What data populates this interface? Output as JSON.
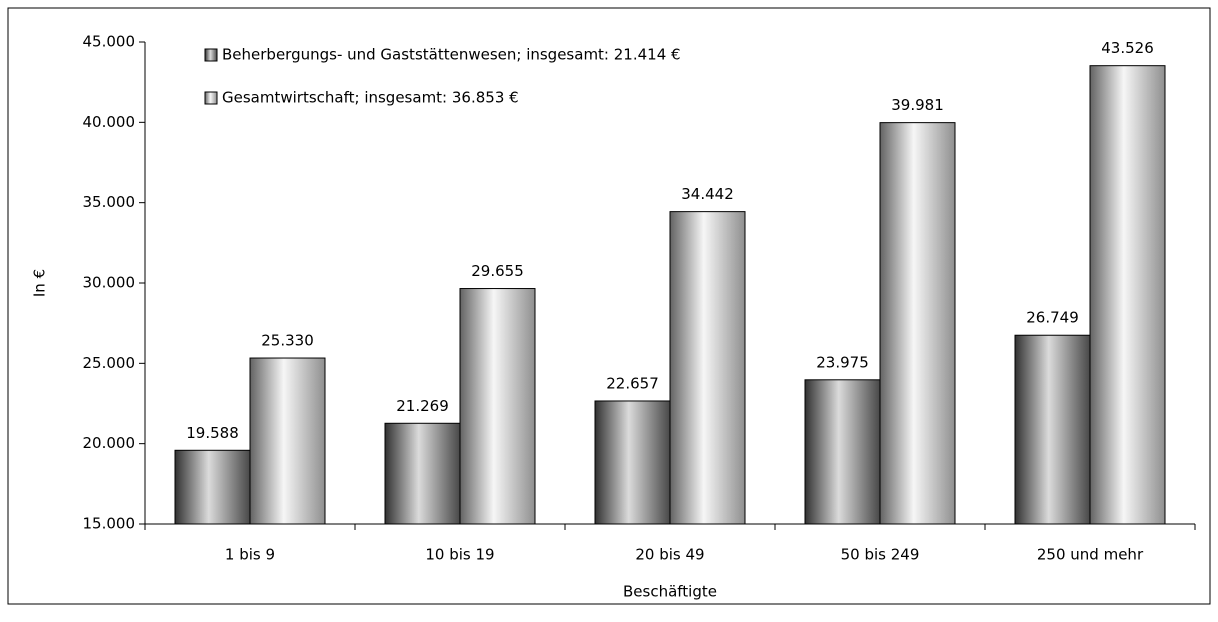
{
  "chart_data": {
    "type": "bar",
    "categories": [
      "1 bis 9",
      "10 bis 19",
      "20 bis 49",
      "50 bis 249",
      "250 und mehr"
    ],
    "series": [
      {
        "name": "Beherbergungs- und Gaststättenwesen; insgesamt: 21.414 €",
        "color": "#6e6e6e",
        "values": [
          19588,
          21269,
          22657,
          23975,
          26749
        ],
        "value_labels": [
          "19.588",
          "21.269",
          "22.657",
          "23.975",
          "26.749"
        ]
      },
      {
        "name": "Gesamtwirtschaft; insgesamt: 36.853 €",
        "color": "#dcdcdc",
        "values": [
          25330,
          29655,
          34442,
          39981,
          43526
        ],
        "value_labels": [
          "25.330",
          "29.655",
          "34.442",
          "39.981",
          "43.526"
        ]
      }
    ],
    "ylim": [
      15000,
      45000
    ],
    "yticks": [
      {
        "value": 15000,
        "label": "15.000"
      },
      {
        "value": 20000,
        "label": "20.000"
      },
      {
        "value": 25000,
        "label": "25.000"
      },
      {
        "value": 30000,
        "label": "30.000"
      },
      {
        "value": 35000,
        "label": "35.000"
      },
      {
        "value": 40000,
        "label": "40.000"
      },
      {
        "value": 45000,
        "label": "45.000"
      }
    ],
    "y_label": "In €",
    "x_label": "Beschäftigte",
    "legend": "top-left"
  }
}
